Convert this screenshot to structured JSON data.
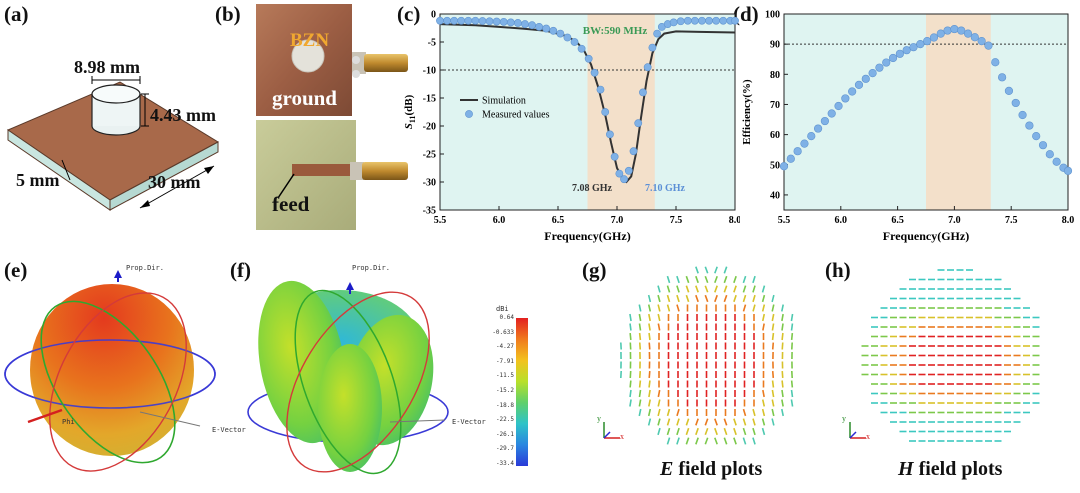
{
  "panels": {
    "a": "(a)",
    "b": "(b)",
    "c": "(c)",
    "d": "(d)",
    "e": "(e)",
    "f": "(f)",
    "g": "(g)",
    "h": "(h)"
  },
  "panel_a": {
    "dim_diameter": "8.98 mm",
    "dim_height": "4.43 mm",
    "dim_substrate": "5 mm",
    "dim_side": "30 mm"
  },
  "panel_b": {
    "material": "BZN",
    "top_label": "ground",
    "bottom_label": "feed"
  },
  "colors": {
    "copper": "#a8694a",
    "plot_bg": "#dff4f1",
    "band": "#f7dcc3",
    "markers": "#7fb1e6",
    "sim_line": "#333333",
    "bw_text": "#3a9a56",
    "mark_right": "#5b8fd6"
  },
  "chart_data": [
    {
      "type": "line",
      "ylabel_main": "S",
      "ylabel_sub": "11",
      "ylabel_tail": "(dB)",
      "xlabel": "Frequency(GHz)",
      "xlim": [
        5.5,
        8.0
      ],
      "ylim": [
        -35,
        0
      ],
      "x_ticks": [
        "5.5",
        "6.0",
        "6.5",
        "7.0",
        "7.5",
        "8.0"
      ],
      "y_ticks": [
        "0",
        "-5",
        "-10",
        "-15",
        "-20",
        "-25",
        "-30",
        "-35"
      ],
      "band": [
        6.75,
        7.32
      ],
      "reference_line": -10,
      "annotations": {
        "bandwidth": "BW:590 MHz",
        "mark_left": "7.08 GHz",
        "mark_right": "7.10 GHz"
      },
      "series": [
        {
          "name": "Simulation",
          "x": [
            5.5,
            5.8,
            6.0,
            6.2,
            6.4,
            6.55,
            6.65,
            6.72,
            6.78,
            6.84,
            6.9,
            6.95,
            7.0,
            7.05,
            7.08,
            7.12,
            7.16,
            7.2,
            7.25,
            7.3,
            7.35,
            7.4,
            7.5,
            7.7,
            8.0
          ],
          "y": [
            -1.8,
            -2.0,
            -2.3,
            -2.6,
            -3.0,
            -3.8,
            -4.8,
            -6.5,
            -9.0,
            -13.0,
            -18.0,
            -23.0,
            -27.5,
            -29.5,
            -30.0,
            -29.0,
            -25.0,
            -19.0,
            -12.0,
            -7.0,
            -4.5,
            -3.5,
            -3.1,
            -3.2,
            -3.3
          ]
        },
        {
          "name": "Measured values",
          "x": [
            5.5,
            5.56,
            5.62,
            5.68,
            5.74,
            5.8,
            5.86,
            5.92,
            5.98,
            6.04,
            6.1,
            6.16,
            6.22,
            6.28,
            6.34,
            6.4,
            6.46,
            6.52,
            6.58,
            6.64,
            6.7,
            6.76,
            6.81,
            6.86,
            6.9,
            6.94,
            6.98,
            7.02,
            7.06,
            7.1,
            7.14,
            7.18,
            7.22,
            7.26,
            7.3,
            7.34,
            7.38,
            7.43,
            7.48,
            7.54,
            7.6,
            7.66,
            7.72,
            7.78,
            7.84,
            7.9,
            7.96,
            8.0
          ],
          "y": [
            -1.2,
            -1.2,
            -1.2,
            -1.2,
            -1.2,
            -1.2,
            -1.25,
            -1.3,
            -1.35,
            -1.4,
            -1.5,
            -1.6,
            -1.8,
            -2.0,
            -2.3,
            -2.6,
            -3.0,
            -3.5,
            -4.2,
            -5.0,
            -6.2,
            -8.0,
            -10.5,
            -13.5,
            -17.5,
            -21.5,
            -25.5,
            -28.5,
            -29.5,
            -28.0,
            -24.5,
            -19.5,
            -14.0,
            -9.5,
            -6.0,
            -3.5,
            -2.3,
            -1.8,
            -1.5,
            -1.3,
            -1.2,
            -1.2,
            -1.2,
            -1.2,
            -1.2,
            -1.2,
            -1.2,
            -1.2
          ]
        }
      ]
    },
    {
      "type": "scatter",
      "ylabel": "Efficiency(%)",
      "xlabel": "Frequency(GHz)",
      "xlim": [
        5.5,
        8.0
      ],
      "ylim": [
        35,
        100
      ],
      "x_ticks": [
        "5.5",
        "6.0",
        "6.5",
        "7.0",
        "7.5",
        "8.0"
      ],
      "y_ticks": [
        "40",
        "50",
        "60",
        "70",
        "80",
        "90",
        "100"
      ],
      "band": [
        6.75,
        7.32
      ],
      "reference_line": 90,
      "series": [
        {
          "name": "Efficiency",
          "x": [
            5.5,
            5.56,
            5.62,
            5.68,
            5.74,
            5.8,
            5.86,
            5.92,
            5.98,
            6.04,
            6.1,
            6.16,
            6.22,
            6.28,
            6.34,
            6.4,
            6.46,
            6.52,
            6.58,
            6.64,
            6.7,
            6.76,
            6.82,
            6.88,
            6.94,
            7.0,
            7.06,
            7.12,
            7.18,
            7.24,
            7.3,
            7.36,
            7.42,
            7.48,
            7.54,
            7.6,
            7.66,
            7.72,
            7.78,
            7.84,
            7.9,
            7.96,
            8.0
          ],
          "y": [
            49.5,
            52.0,
            54.5,
            57.0,
            59.5,
            62.0,
            64.5,
            67.0,
            69.5,
            72.0,
            74.3,
            76.5,
            78.5,
            80.4,
            82.2,
            83.9,
            85.4,
            86.8,
            88.0,
            89.0,
            90.0,
            91.0,
            92.2,
            93.5,
            94.5,
            95.0,
            94.5,
            93.5,
            92.3,
            91.0,
            89.5,
            84.0,
            79.0,
            74.5,
            70.5,
            66.5,
            63.0,
            59.5,
            56.5,
            53.5,
            51.0,
            49.0,
            48.0
          ]
        }
      ]
    }
  ],
  "panel_e": {
    "prop_dir": "Prop.Dir.",
    "phi": "Phi",
    "e_vector": "E-Vector"
  },
  "panel_f": {
    "prop_dir": "Prop.Dir.",
    "e_vector": "E-Vector",
    "colorbar_unit": "dBi",
    "colorbar_ticks": [
      "0.64",
      "-0.633",
      "-4.27",
      "-7.91",
      "-11.5",
      "-15.2",
      "-18.8",
      "-22.5",
      "-26.1",
      "-29.7",
      "-33.4"
    ]
  },
  "panel_g": {
    "caption_italic": "E",
    "caption_rest": " field plots",
    "axis_y": "y",
    "axis_x": "x"
  },
  "panel_h": {
    "caption_italic": "H",
    "caption_rest": " field plots",
    "axis_y": "y",
    "axis_x": "x"
  }
}
